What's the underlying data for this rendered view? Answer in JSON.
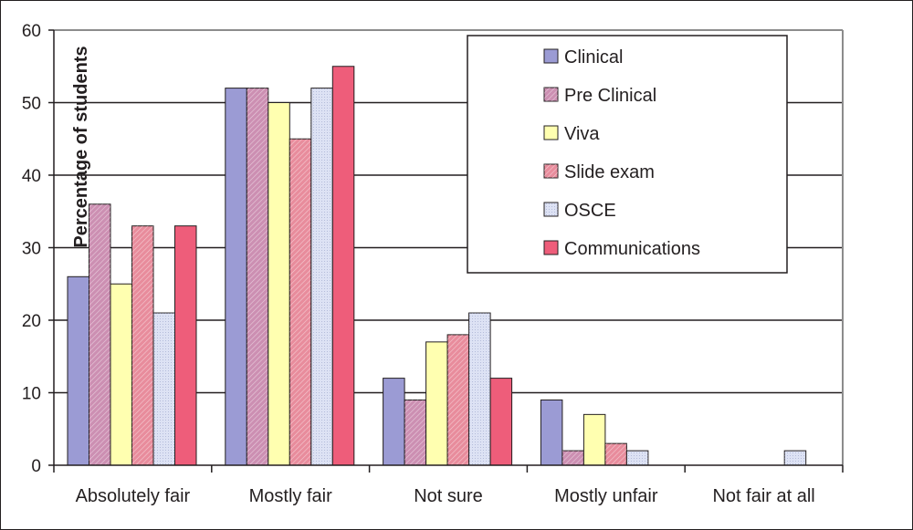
{
  "chart_data": {
    "type": "bar",
    "title": "",
    "xlabel": "",
    "ylabel": "Percentage of students",
    "ylim": [
      0,
      60
    ],
    "yticks": [
      0,
      10,
      20,
      30,
      40,
      50,
      60
    ],
    "grid": true,
    "legend_position": "top-right",
    "categories": [
      "Absolutely fair",
      "Mostly fair",
      "Not sure",
      "Mostly unfair",
      "Not fair at all"
    ],
    "series": [
      {
        "name": "Clinical",
        "color": "#9b9bd4",
        "values": [
          26,
          52,
          12,
          9,
          0
        ]
      },
      {
        "name": "Pre Clinical",
        "color": "#cc8fb2",
        "values": [
          36,
          52,
          9,
          2,
          0
        ]
      },
      {
        "name": "Viva",
        "color": "#ffffb0",
        "values": [
          25,
          50,
          17,
          7,
          0
        ]
      },
      {
        "name": "Slide exam",
        "color": "#e88c9c",
        "values": [
          33,
          45,
          18,
          3,
          0
        ]
      },
      {
        "name": "OSCE",
        "color": "#dde2f4",
        "values": [
          21,
          52,
          21,
          2,
          2
        ]
      },
      {
        "name": "Communications",
        "color": "#ee5d7a",
        "values": [
          33,
          55,
          12,
          0,
          0
        ]
      }
    ]
  }
}
